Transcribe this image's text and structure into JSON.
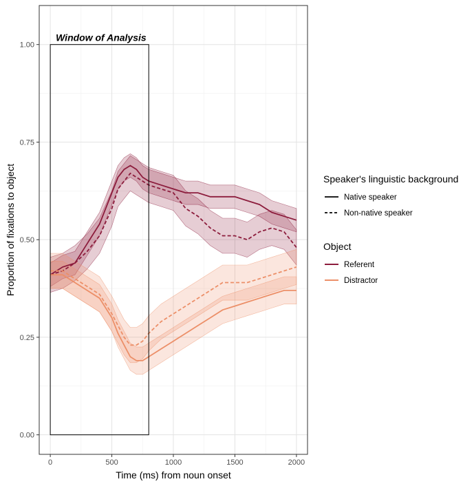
{
  "chart_data": {
    "type": "line",
    "xlabel": "Time (ms) from noun onset",
    "ylabel": "Proportion of fixations to object",
    "xlim": [
      -90,
      2090
    ],
    "ylim": [
      -0.05,
      1.1
    ],
    "x_ticks": [
      0,
      500,
      1000,
      1500,
      2000
    ],
    "x_tick_labels": [
      "0",
      "500",
      "1000",
      "1500",
      "2000"
    ],
    "y_ticks": [
      0,
      0.25,
      0.5,
      0.75,
      1
    ],
    "y_tick_labels": [
      "0.00",
      "0.25",
      "0.50",
      "0.75",
      "1.00"
    ],
    "grid": true,
    "annotation": {
      "text": "Window of Analysis",
      "x_range": [
        0,
        800
      ],
      "y_range": [
        0,
        1
      ]
    },
    "legend": {
      "placement": "right",
      "linetype_title": "Speaker's linguistic background",
      "linetype_entries": [
        {
          "label": "Native speaker",
          "dash": "solid"
        },
        {
          "label": "Non-native speaker",
          "dash": "dashed"
        }
      ],
      "object_title": "Object",
      "object_entries": [
        {
          "label": "Referent",
          "color": "#8c1c3c"
        },
        {
          "label": "Distractor",
          "color": "#ec8f68"
        }
      ]
    },
    "x": [
      0,
      100,
      200,
      300,
      400,
      500,
      550,
      600,
      650,
      700,
      750,
      800,
      900,
      1000,
      1100,
      1200,
      1300,
      1400,
      1500,
      1600,
      1700,
      1800,
      1900,
      2000
    ],
    "series": [
      {
        "name": "Native speaker - Referent",
        "object": "Referent",
        "speaker": "Native speaker",
        "color": "#8c1c3c",
        "dash": "solid",
        "values": [
          0.41,
          0.43,
          0.44,
          0.49,
          0.54,
          0.62,
          0.66,
          0.68,
          0.69,
          0.68,
          0.66,
          0.65,
          0.64,
          0.63,
          0.62,
          0.62,
          0.61,
          0.61,
          0.61,
          0.6,
          0.59,
          0.57,
          0.56,
          0.55
        ],
        "ci_halfwidth": 0.03
      },
      {
        "name": "Non-native speaker - Referent",
        "object": "Referent",
        "speaker": "Non-native speaker",
        "color": "#8c1c3c",
        "dash": "dashed",
        "values": [
          0.41,
          0.42,
          0.44,
          0.47,
          0.51,
          0.58,
          0.63,
          0.65,
          0.67,
          0.66,
          0.65,
          0.64,
          0.63,
          0.62,
          0.58,
          0.56,
          0.53,
          0.51,
          0.51,
          0.5,
          0.52,
          0.53,
          0.52,
          0.48
        ],
        "ci_halfwidth": 0.045
      },
      {
        "name": "Native speaker - Distractor",
        "object": "Distractor",
        "speaker": "Native speaker",
        "color": "#ec8f68",
        "dash": "solid",
        "values": [
          0.41,
          0.41,
          0.39,
          0.37,
          0.35,
          0.3,
          0.26,
          0.23,
          0.2,
          0.19,
          0.19,
          0.2,
          0.22,
          0.24,
          0.26,
          0.28,
          0.3,
          0.32,
          0.33,
          0.34,
          0.35,
          0.36,
          0.37,
          0.37
        ],
        "ci_halfwidth": 0.035
      },
      {
        "name": "Non-native speaker - Distractor",
        "object": "Distractor",
        "speaker": "Non-native speaker",
        "color": "#ec8f68",
        "dash": "dashed",
        "values": [
          0.42,
          0.42,
          0.4,
          0.38,
          0.36,
          0.31,
          0.28,
          0.25,
          0.23,
          0.23,
          0.24,
          0.26,
          0.29,
          0.31,
          0.33,
          0.35,
          0.37,
          0.39,
          0.39,
          0.39,
          0.4,
          0.41,
          0.42,
          0.43
        ],
        "ci_halfwidth": 0.045
      }
    ]
  }
}
